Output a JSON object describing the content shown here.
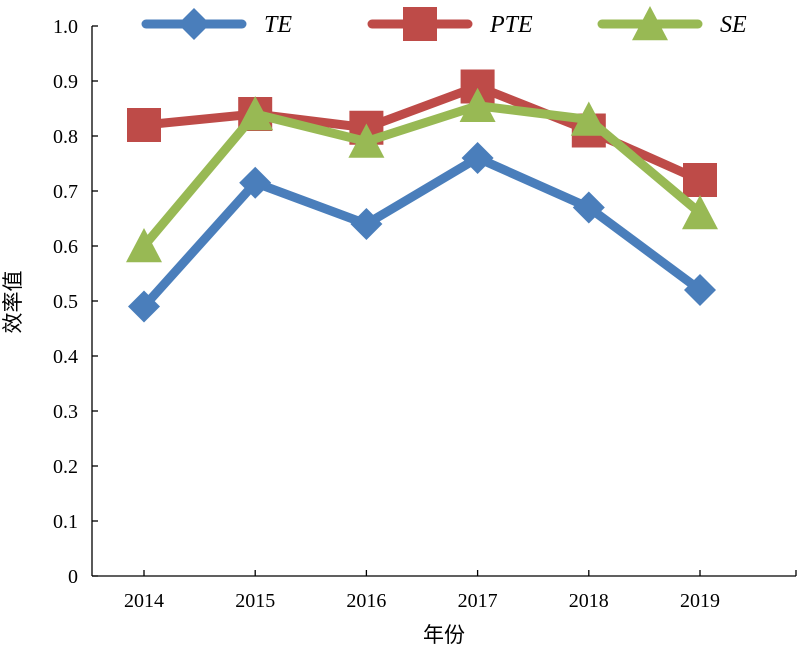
{
  "chart_data": {
    "type": "line",
    "title": "",
    "xlabel": "年份",
    "ylabel": "效率值",
    "categories": [
      "2014",
      "2015",
      "2016",
      "2017",
      "2018",
      "2019"
    ],
    "ylim": [
      0,
      1.0
    ],
    "yticks": [
      "0",
      "0.1",
      "0.2",
      "0.3",
      "0.4",
      "0.5",
      "0.6",
      "0.7",
      "0.8",
      "0.9",
      "1.0"
    ],
    "grid": false,
    "legend_position": "top",
    "series": [
      {
        "name": "TE",
        "values": [
          0.49,
          0.715,
          0.64,
          0.76,
          0.67,
          0.52
        ],
        "color": "#4a7ebb",
        "marker": "diamond"
      },
      {
        "name": "PTE",
        "values": [
          0.82,
          0.84,
          0.815,
          0.89,
          0.81,
          0.72
        ],
        "color": "#be4b48",
        "marker": "square"
      },
      {
        "name": "SE",
        "values": [
          0.6,
          0.84,
          0.79,
          0.855,
          0.83,
          0.66
        ],
        "color": "#98b954",
        "marker": "triangle"
      }
    ]
  }
}
